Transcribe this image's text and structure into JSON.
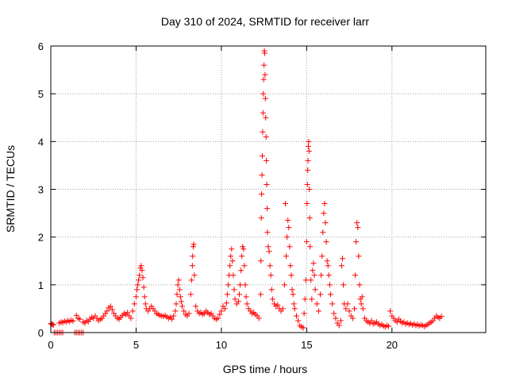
{
  "chart_data": {
    "type": "scatter",
    "title": "Day 310 of 2024, SRMTID for receiver larr",
    "xlabel": "GPS time / hours",
    "ylabel": "SRMTID / TECUs",
    "xlim": [
      0,
      25.5
    ],
    "ylim": [
      0,
      6
    ],
    "x_ticks": [
      0,
      5,
      10,
      15,
      20
    ],
    "y_ticks": [
      0,
      1,
      2,
      3,
      4,
      5,
      6
    ],
    "grid": true,
    "marker": "+",
    "marker_color": "#ff0000",
    "series": [
      {
        "name": "SRMTID",
        "points": [
          [
            0.0,
            0.19
          ],
          [
            0.05,
            0.18
          ],
          [
            0.1,
            0.17
          ],
          [
            0.15,
            0.16
          ],
          [
            0.2,
            0.0
          ],
          [
            0.3,
            0.0
          ],
          [
            0.4,
            0.0
          ],
          [
            0.5,
            0.0
          ],
          [
            0.6,
            0.0
          ],
          [
            0.7,
            0.0
          ],
          [
            0.5,
            0.2
          ],
          [
            0.6,
            0.22
          ],
          [
            0.7,
            0.21
          ],
          [
            0.8,
            0.24
          ],
          [
            0.9,
            0.22
          ],
          [
            1.0,
            0.25
          ],
          [
            1.1,
            0.23
          ],
          [
            1.2,
            0.26
          ],
          [
            1.3,
            0.24
          ],
          [
            1.4,
            0.0
          ],
          [
            1.5,
            0.0
          ],
          [
            1.6,
            0.0
          ],
          [
            1.7,
            0.0
          ],
          [
            1.8,
            0.0
          ],
          [
            1.9,
            0.0
          ],
          [
            1.5,
            0.36
          ],
          [
            1.6,
            0.3
          ],
          [
            1.7,
            0.28
          ],
          [
            1.9,
            0.22
          ],
          [
            2.0,
            0.2
          ],
          [
            2.1,
            0.25
          ],
          [
            2.2,
            0.23
          ],
          [
            2.3,
            0.28
          ],
          [
            2.4,
            0.32
          ],
          [
            2.5,
            0.3
          ],
          [
            2.6,
            0.35
          ],
          [
            2.7,
            0.3
          ],
          [
            2.8,
            0.25
          ],
          [
            2.9,
            0.28
          ],
          [
            3.0,
            0.3
          ],
          [
            3.1,
            0.35
          ],
          [
            3.2,
            0.4
          ],
          [
            3.3,
            0.45
          ],
          [
            3.4,
            0.52
          ],
          [
            3.5,
            0.55
          ],
          [
            3.6,
            0.48
          ],
          [
            3.7,
            0.4
          ],
          [
            3.8,
            0.35
          ],
          [
            3.9,
            0.3
          ],
          [
            4.0,
            0.28
          ],
          [
            4.1,
            0.32
          ],
          [
            4.2,
            0.36
          ],
          [
            4.3,
            0.4
          ],
          [
            4.4,
            0.38
          ],
          [
            4.5,
            0.42
          ],
          [
            4.6,
            0.35
          ],
          [
            4.7,
            0.3
          ],
          [
            4.8,
            0.45
          ],
          [
            4.9,
            0.6
          ],
          [
            5.0,
            0.75
          ],
          [
            5.05,
            0.9
          ],
          [
            5.1,
            1.0
          ],
          [
            5.15,
            1.1
          ],
          [
            5.2,
            1.2
          ],
          [
            5.25,
            1.35
          ],
          [
            5.3,
            1.4
          ],
          [
            5.35,
            1.3
          ],
          [
            5.4,
            1.15
          ],
          [
            5.45,
            0.95
          ],
          [
            5.5,
            0.75
          ],
          [
            5.55,
            0.6
          ],
          [
            5.6,
            0.5
          ],
          [
            5.7,
            0.45
          ],
          [
            5.8,
            0.5
          ],
          [
            5.9,
            0.55
          ],
          [
            6.0,
            0.5
          ],
          [
            6.1,
            0.45
          ],
          [
            6.2,
            0.4
          ],
          [
            6.3,
            0.38
          ],
          [
            6.4,
            0.36
          ],
          [
            6.5,
            0.35
          ],
          [
            6.6,
            0.34
          ],
          [
            6.7,
            0.36
          ],
          [
            6.8,
            0.33
          ],
          [
            6.9,
            0.3
          ],
          [
            7.0,
            0.32
          ],
          [
            7.1,
            0.28
          ],
          [
            7.2,
            0.35
          ],
          [
            7.3,
            0.45
          ],
          [
            7.35,
            0.6
          ],
          [
            7.4,
            0.8
          ],
          [
            7.45,
            1.0
          ],
          [
            7.5,
            1.1
          ],
          [
            7.55,
            0.9
          ],
          [
            7.6,
            0.75
          ],
          [
            7.65,
            0.65
          ],
          [
            7.7,
            0.55
          ],
          [
            7.8,
            0.45
          ],
          [
            7.9,
            0.38
          ],
          [
            8.0,
            0.35
          ],
          [
            8.1,
            0.4
          ],
          [
            8.2,
            0.8
          ],
          [
            8.25,
            1.1
          ],
          [
            8.3,
            1.4
          ],
          [
            8.32,
            1.6
          ],
          [
            8.35,
            1.8
          ],
          [
            8.38,
            1.85
          ],
          [
            8.42,
            1.2
          ],
          [
            8.5,
            0.55
          ],
          [
            8.6,
            0.45
          ],
          [
            8.7,
            0.4
          ],
          [
            8.8,
            0.42
          ],
          [
            8.9,
            0.38
          ],
          [
            9.0,
            0.4
          ],
          [
            9.1,
            0.45
          ],
          [
            9.2,
            0.42
          ],
          [
            9.3,
            0.38
          ],
          [
            9.4,
            0.4
          ],
          [
            9.5,
            0.35
          ],
          [
            9.6,
            0.3
          ],
          [
            9.7,
            0.28
          ],
          [
            9.8,
            0.3
          ],
          [
            9.9,
            0.38
          ],
          [
            10.0,
            0.45
          ],
          [
            10.1,
            0.55
          ],
          [
            10.2,
            0.5
          ],
          [
            10.3,
            0.62
          ],
          [
            10.35,
            0.8
          ],
          [
            10.4,
            1.0
          ],
          [
            10.45,
            1.2
          ],
          [
            10.5,
            1.4
          ],
          [
            10.55,
            1.6
          ],
          [
            10.6,
            1.75
          ],
          [
            10.65,
            1.5
          ],
          [
            10.7,
            1.2
          ],
          [
            10.75,
            0.9
          ],
          [
            10.8,
            0.7
          ],
          [
            10.9,
            0.6
          ],
          [
            11.0,
            0.65
          ],
          [
            11.05,
            0.8
          ],
          [
            11.1,
            1.0
          ],
          [
            11.15,
            1.3
          ],
          [
            11.2,
            1.6
          ],
          [
            11.25,
            1.8
          ],
          [
            11.3,
            1.75
          ],
          [
            11.35,
            1.4
          ],
          [
            11.4,
            1.0
          ],
          [
            11.45,
            0.75
          ],
          [
            11.5,
            0.6
          ],
          [
            11.6,
            0.5
          ],
          [
            11.7,
            0.45
          ],
          [
            11.8,
            0.4
          ],
          [
            11.9,
            0.42
          ],
          [
            12.0,
            0.38
          ],
          [
            12.1,
            0.35
          ],
          [
            12.2,
            0.3
          ],
          [
            12.3,
            0.8
          ],
          [
            12.32,
            1.5
          ],
          [
            12.34,
            2.4
          ],
          [
            12.36,
            2.9
          ],
          [
            12.38,
            3.3
          ],
          [
            12.4,
            3.7
          ],
          [
            12.42,
            4.2
          ],
          [
            12.44,
            4.6
          ],
          [
            12.46,
            5.0
          ],
          [
            12.48,
            5.3
          ],
          [
            12.5,
            5.6
          ],
          [
            12.52,
            5.9
          ],
          [
            12.54,
            5.85
          ],
          [
            12.56,
            5.4
          ],
          [
            12.58,
            4.9
          ],
          [
            12.6,
            4.5
          ],
          [
            12.62,
            4.1
          ],
          [
            12.64,
            3.6
          ],
          [
            12.66,
            3.1
          ],
          [
            12.68,
            2.6
          ],
          [
            12.7,
            2.1
          ],
          [
            12.75,
            1.8
          ],
          [
            12.8,
            1.7
          ],
          [
            12.85,
            1.4
          ],
          [
            12.9,
            1.2
          ],
          [
            12.95,
            0.9
          ],
          [
            13.0,
            0.7
          ],
          [
            13.1,
            0.6
          ],
          [
            13.2,
            0.55
          ],
          [
            13.3,
            0.58
          ],
          [
            13.4,
            0.5
          ],
          [
            13.5,
            0.45
          ],
          [
            13.6,
            0.5
          ],
          [
            13.7,
            1.0
          ],
          [
            13.75,
            2.7
          ],
          [
            13.8,
            1.6
          ],
          [
            13.85,
            2.0
          ],
          [
            13.9,
            2.35
          ],
          [
            13.95,
            2.2
          ],
          [
            14.0,
            1.8
          ],
          [
            14.05,
            1.4
          ],
          [
            14.1,
            1.2
          ],
          [
            14.15,
            0.9
          ],
          [
            14.2,
            0.8
          ],
          [
            14.25,
            0.6
          ],
          [
            14.3,
            0.5
          ],
          [
            14.4,
            0.35
          ],
          [
            14.5,
            0.25
          ],
          [
            14.6,
            0.15
          ],
          [
            14.7,
            0.12
          ],
          [
            14.8,
            0.1
          ],
          [
            14.85,
            0.4
          ],
          [
            14.9,
            0.7
          ],
          [
            14.95,
            1.1
          ],
          [
            15.0,
            1.9
          ],
          [
            15.02,
            2.7
          ],
          [
            15.04,
            3.1
          ],
          [
            15.06,
            3.4
          ],
          [
            15.08,
            3.6
          ],
          [
            15.1,
            3.9
          ],
          [
            15.12,
            4.0
          ],
          [
            15.14,
            3.8
          ],
          [
            15.16,
            3.0
          ],
          [
            15.18,
            2.4
          ],
          [
            15.2,
            1.8
          ],
          [
            15.25,
            1.1
          ],
          [
            15.3,
            0.7
          ],
          [
            15.35,
            1.3
          ],
          [
            15.4,
            1.45
          ],
          [
            15.45,
            1.2
          ],
          [
            15.5,
            0.9
          ],
          [
            15.6,
            0.6
          ],
          [
            15.7,
            0.45
          ],
          [
            15.8,
            0.8
          ],
          [
            15.85,
            1.2
          ],
          [
            15.9,
            1.6
          ],
          [
            15.95,
            2.1
          ],
          [
            16.0,
            2.5
          ],
          [
            16.05,
            2.7
          ],
          [
            16.1,
            2.3
          ],
          [
            16.15,
            1.9
          ],
          [
            16.2,
            1.5
          ],
          [
            16.25,
            1.4
          ],
          [
            16.3,
            1.2
          ],
          [
            16.35,
            1.0
          ],
          [
            16.4,
            0.8
          ],
          [
            16.5,
            0.6
          ],
          [
            16.6,
            0.4
          ],
          [
            16.7,
            0.3
          ],
          [
            16.8,
            0.2
          ],
          [
            16.9,
            0.15
          ],
          [
            17.0,
            0.25
          ],
          [
            17.05,
            1.4
          ],
          [
            17.1,
            1.55
          ],
          [
            17.15,
            1.0
          ],
          [
            17.2,
            0.6
          ],
          [
            17.3,
            0.5
          ],
          [
            17.4,
            0.6
          ],
          [
            17.5,
            0.45
          ],
          [
            17.6,
            0.35
          ],
          [
            17.7,
            0.3
          ],
          [
            17.8,
            0.5
          ],
          [
            17.85,
            1.2
          ],
          [
            17.9,
            1.9
          ],
          [
            17.95,
            2.3
          ],
          [
            18.0,
            2.2
          ],
          [
            18.05,
            1.6
          ],
          [
            18.1,
            1.0
          ],
          [
            18.15,
            0.7
          ],
          [
            18.2,
            0.6
          ],
          [
            18.25,
            0.75
          ],
          [
            18.3,
            0.5
          ],
          [
            18.4,
            0.3
          ],
          [
            18.5,
            0.25
          ],
          [
            18.6,
            0.22
          ],
          [
            18.7,
            0.2
          ],
          [
            18.8,
            0.25
          ],
          [
            18.9,
            0.18
          ],
          [
            19.0,
            0.2
          ],
          [
            19.1,
            0.22
          ],
          [
            19.2,
            0.18
          ],
          [
            19.3,
            0.15
          ],
          [
            19.4,
            0.17
          ],
          [
            19.5,
            0.14
          ],
          [
            19.6,
            0.12
          ],
          [
            19.7,
            0.15
          ],
          [
            19.8,
            0.13
          ],
          [
            19.9,
            0.45
          ],
          [
            20.0,
            0.35
          ],
          [
            20.1,
            0.3
          ],
          [
            20.2,
            0.25
          ],
          [
            20.3,
            0.22
          ],
          [
            20.4,
            0.28
          ],
          [
            20.5,
            0.24
          ],
          [
            20.6,
            0.2
          ],
          [
            20.7,
            0.22
          ],
          [
            20.8,
            0.18
          ],
          [
            20.9,
            0.2
          ],
          [
            21.0,
            0.17
          ],
          [
            21.1,
            0.19
          ],
          [
            21.2,
            0.16
          ],
          [
            21.3,
            0.18
          ],
          [
            21.4,
            0.15
          ],
          [
            21.5,
            0.17
          ],
          [
            21.6,
            0.14
          ],
          [
            21.7,
            0.16
          ],
          [
            21.8,
            0.15
          ],
          [
            21.9,
            0.13
          ],
          [
            22.0,
            0.15
          ],
          [
            22.1,
            0.17
          ],
          [
            22.2,
            0.2
          ],
          [
            22.3,
            0.22
          ],
          [
            22.4,
            0.25
          ],
          [
            22.5,
            0.3
          ],
          [
            22.6,
            0.35
          ],
          [
            22.7,
            0.32
          ],
          [
            22.8,
            0.3
          ],
          [
            22.9,
            0.34
          ]
        ]
      }
    ]
  }
}
